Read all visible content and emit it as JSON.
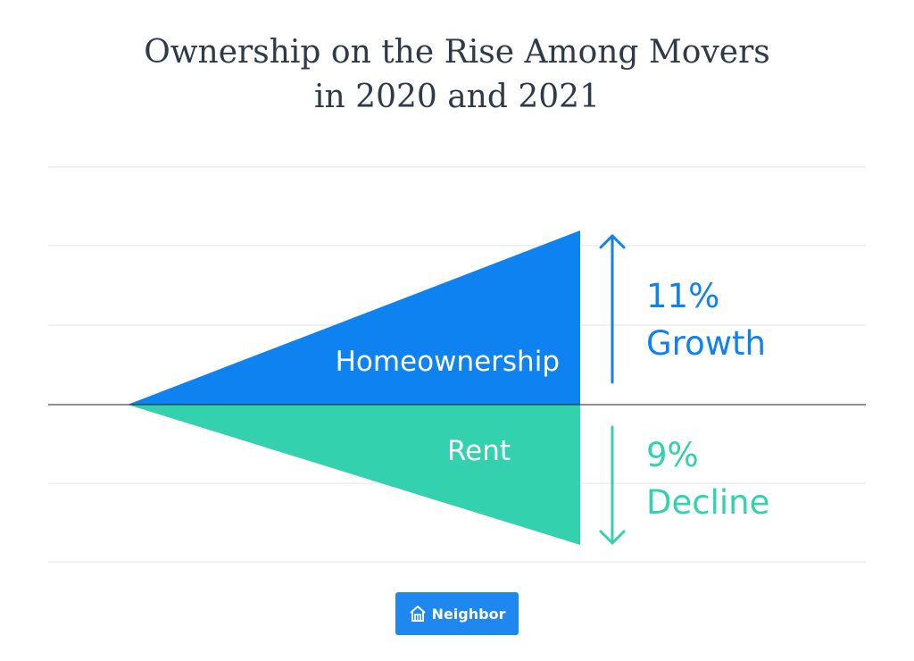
{
  "title_lines": [
    "Ownership on the Rise Among Movers",
    "in 2020 and 2021"
  ],
  "chart_data": {
    "type": "area",
    "series": [
      {
        "name": "Homeownership",
        "change_label": "11%",
        "direction_label": "Growth",
        "direction": "up",
        "value": 11,
        "color": "#0f82f2"
      },
      {
        "name": "Rent",
        "change_label": "9%",
        "direction_label": "Decline",
        "direction": "down",
        "value": -9,
        "color": "#33d1ae"
      }
    ],
    "ylim": [
      -10,
      11
    ],
    "grid": true,
    "xlabel": "",
    "ylabel": ""
  },
  "logo": {
    "text": "Neighbor",
    "icon": "house-icon",
    "color": "#1e88f0"
  },
  "colors": {
    "title": "#2f3a48",
    "grid": "#e6e6e6",
    "baseline": "#222222"
  }
}
